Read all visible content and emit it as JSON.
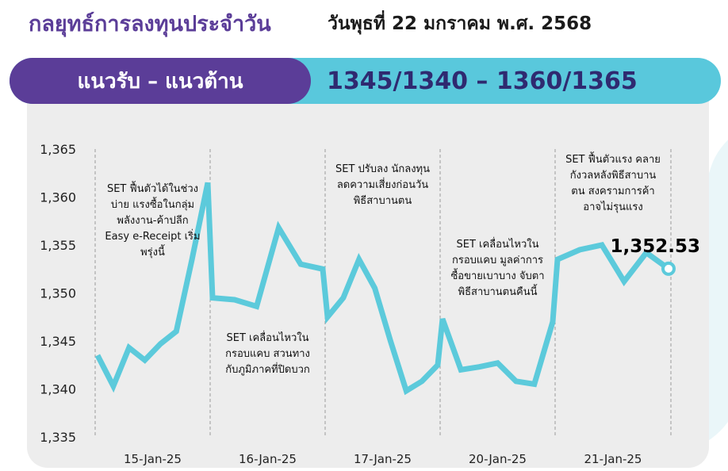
{
  "header": {
    "title": "กลยุทธ์การลงทุนประจำวัน",
    "date": "วันพุธที่ 22 มกราคม พ.ศ. 2568"
  },
  "banner": {
    "label": "แนวรับ – แนวต้าน",
    "levels": "1345/1340 – 1360/1365"
  },
  "colors": {
    "purple": "#5b3d98",
    "cyan": "#59c8dc",
    "line": "#5ccadb"
  },
  "chart_data": {
    "type": "line",
    "xlabel": "",
    "ylabel": "",
    "ylim": [
      1335,
      1365
    ],
    "yticks": [
      "1,365",
      "1,360",
      "1,355",
      "1,350",
      "1,345",
      "1,340",
      "1,335"
    ],
    "yticks_values": [
      1365,
      1360,
      1355,
      1350,
      1345,
      1340,
      1335
    ],
    "categories": [
      "15-Jan-25",
      "16-Jan-25",
      "17-Jan-25",
      "20-Jan-25",
      "21-Jan-25"
    ],
    "points_per_day": [
      [
        1343.5,
        1340.3,
        1344.3,
        1343.0,
        1344.7,
        1346.0,
        1353.5,
        1361.5
      ],
      [
        1349.5,
        1349.3,
        1348.6,
        1356.8,
        1353.0,
        1352.5
      ],
      [
        1347.5,
        1349.5,
        1353.5,
        1350.5,
        1345.0,
        1339.8,
        1340.8,
        1342.5
      ],
      [
        1347.3,
        1342.0,
        1342.3,
        1342.7,
        1340.8,
        1340.5,
        1347.0
      ],
      [
        1353.5,
        1354.5,
        1355.0,
        1351.2,
        1354.2,
        1352.53
      ]
    ],
    "last_value_label": "1,352.53",
    "annotations": [
      [
        "SET ฟื้นตัวได้ในช่วง",
        "บ่าย แรงซื้อในกลุ่ม",
        "พลังงาน-ค้าปลีก",
        "Easy e-Receipt เริ่ม",
        "พรุ่งนี้"
      ],
      [
        "SET เคลื่อนไหวใน",
        "กรอบแคบ สวนทาง",
        "กับภูมิภาคที่ปิดบวก"
      ],
      [
        "SET ปรับลง นักลงทุน",
        "ลดความเสี่ยงก่อนวัน",
        "พิธีสาบานตน"
      ],
      [
        "SET เคลื่อนไหวใน",
        "กรอบแคบ มูลค่าการ",
        "ซื้อขายเบาบาง จับตา",
        "พิธีสาบานตนคืนนี้"
      ],
      [
        "SET ฟื้นตัวแรง คลาย",
        "กังวลหลังพิธีสาบาน",
        "ตน สงครามการค้า",
        "อาจไม่รุนแรง"
      ]
    ]
  }
}
